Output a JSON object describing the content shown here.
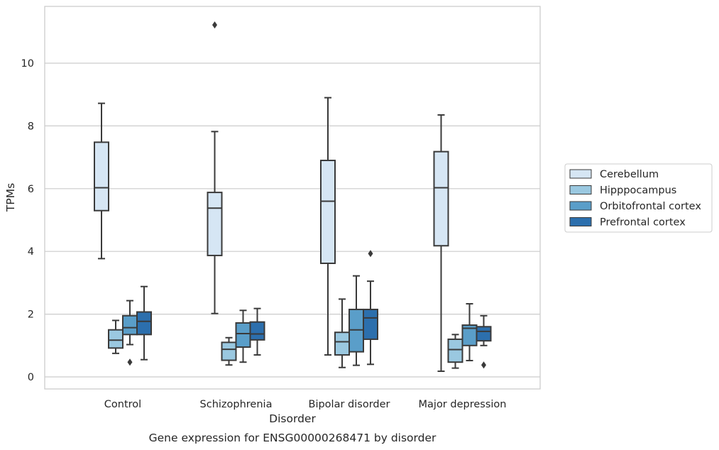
{
  "chart_data": {
    "type": "box",
    "caption": "Gene expression for ENSG00000268471 by disorder",
    "xlabel": "Disorder",
    "ylabel": "TPMs",
    "ylim": [
      -0.35,
      11.9
    ],
    "yticks": [
      0,
      2,
      4,
      6,
      8,
      10
    ],
    "grid": true,
    "legend_position": "right",
    "categories": [
      "Control",
      "Schizophrenia",
      "Bipolar disorder",
      "Major depression"
    ],
    "series": [
      {
        "name": "Cerebellum",
        "color": "#d6e6f4",
        "boxes": [
          {
            "whisker_low": 3.77,
            "q1": 5.3,
            "median": 6.03,
            "q3": 7.48,
            "whisker_high": 8.72,
            "outliers": []
          },
          {
            "whisker_low": 2.02,
            "q1": 3.87,
            "median": 5.38,
            "q3": 5.88,
            "whisker_high": 7.82,
            "outliers": [
              11.22
            ]
          },
          {
            "whisker_low": 0.7,
            "q1": 3.62,
            "median": 5.6,
            "q3": 6.9,
            "whisker_high": 8.9,
            "outliers": []
          },
          {
            "whisker_low": 0.18,
            "q1": 4.18,
            "median": 6.03,
            "q3": 7.18,
            "whisker_high": 8.35,
            "outliers": []
          }
        ]
      },
      {
        "name": "Hipppocampus",
        "color": "#9ac8e0",
        "boxes": [
          {
            "whisker_low": 0.75,
            "q1": 0.92,
            "median": 1.17,
            "q3": 1.5,
            "whisker_high": 1.8,
            "outliers": []
          },
          {
            "whisker_low": 0.38,
            "q1": 0.53,
            "median": 0.88,
            "q3": 1.1,
            "whisker_high": 1.25,
            "outliers": []
          },
          {
            "whisker_low": 0.3,
            "q1": 0.7,
            "median": 1.12,
            "q3": 1.42,
            "whisker_high": 2.48,
            "outliers": []
          },
          {
            "whisker_low": 0.28,
            "q1": 0.47,
            "median": 0.87,
            "q3": 1.2,
            "whisker_high": 1.35,
            "outliers": []
          }
        ]
      },
      {
        "name": "Orbitofrontal cortex",
        "color": "#5a9ec9",
        "boxes": [
          {
            "whisker_low": 1.03,
            "q1": 1.35,
            "median": 1.57,
            "q3": 1.95,
            "whisker_high": 2.43,
            "outliers": [
              0.47
            ]
          },
          {
            "whisker_low": 0.47,
            "q1": 0.95,
            "median": 1.38,
            "q3": 1.72,
            "whisker_high": 2.12,
            "outliers": []
          },
          {
            "whisker_low": 0.37,
            "q1": 0.8,
            "median": 1.5,
            "q3": 2.15,
            "whisker_high": 3.22,
            "outliers": []
          },
          {
            "whisker_low": 0.52,
            "q1": 1.0,
            "median": 1.55,
            "q3": 1.65,
            "whisker_high": 2.33,
            "outliers": []
          }
        ]
      },
      {
        "name": "Prefrontal cortex",
        "color": "#2c6fad",
        "boxes": [
          {
            "whisker_low": 0.55,
            "q1": 1.35,
            "median": 1.77,
            "q3": 2.07,
            "whisker_high": 2.88,
            "outliers": []
          },
          {
            "whisker_low": 0.7,
            "q1": 1.18,
            "median": 1.37,
            "q3": 1.75,
            "whisker_high": 2.18,
            "outliers": []
          },
          {
            "whisker_low": 0.4,
            "q1": 1.2,
            "median": 1.88,
            "q3": 2.15,
            "whisker_high": 3.05,
            "outliers": [
              3.93
            ]
          },
          {
            "whisker_low": 1.0,
            "q1": 1.15,
            "median": 1.45,
            "q3": 1.6,
            "whisker_high": 1.95,
            "outliers": [
              0.38
            ]
          }
        ]
      }
    ]
  }
}
